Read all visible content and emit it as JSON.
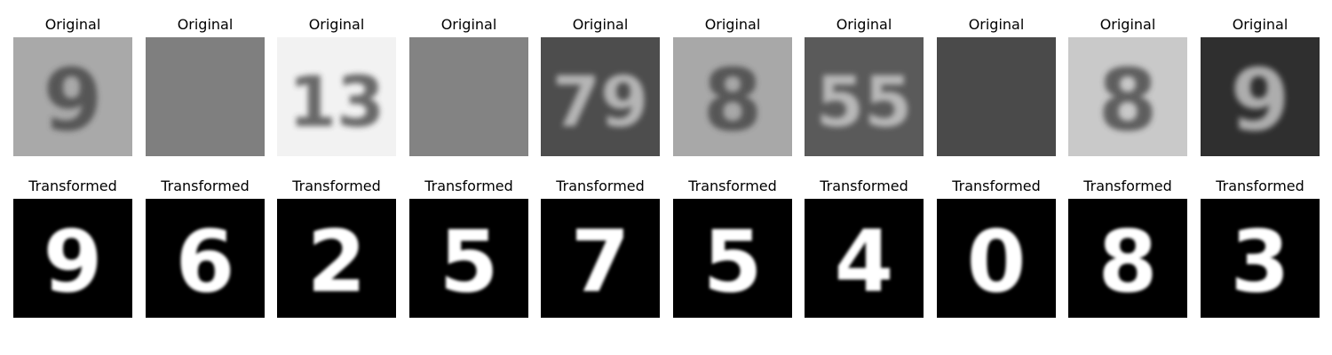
{
  "rows": [
    {
      "kind": "original",
      "title": "Original"
    },
    {
      "kind": "transformed",
      "title": "Transformed"
    }
  ],
  "samples": [
    {
      "original_bg": "#a9a9a9",
      "original_glyph": "9",
      "transformed_glyph": "9"
    },
    {
      "original_bg": "#7f7f7f",
      "original_glyph": "",
      "transformed_glyph": "6"
    },
    {
      "original_bg": "#f2f2f2",
      "original_glyph": "13",
      "transformed_glyph": "2"
    },
    {
      "original_bg": "#838383",
      "original_glyph": "",
      "transformed_glyph": "5"
    },
    {
      "original_bg": "#4d4d4d",
      "original_glyph": "79",
      "transformed_glyph": "7"
    },
    {
      "original_bg": "#a8a8a8",
      "original_glyph": "8",
      "transformed_glyph": "5"
    },
    {
      "original_bg": "#5a5a5a",
      "original_glyph": "55",
      "transformed_glyph": "4"
    },
    {
      "original_bg": "#4a4a4a",
      "original_glyph": "",
      "transformed_glyph": "0"
    },
    {
      "original_bg": "#c9c9c9",
      "original_glyph": "8",
      "transformed_glyph": "8"
    },
    {
      "original_bg": "#2f2f2f",
      "original_glyph": "9",
      "transformed_glyph": "3"
    }
  ],
  "colors": {
    "transformed_bg": "#000000",
    "transformed_glyph": "#ffffff"
  }
}
